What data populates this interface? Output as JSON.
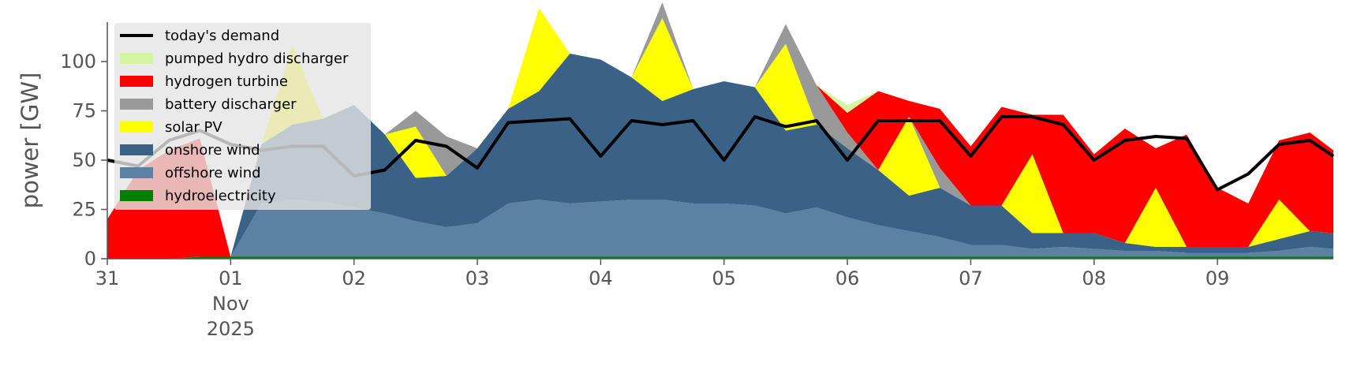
{
  "chart_data": {
    "type": "area",
    "ylabel": "power [GW]",
    "xlabel": "",
    "ylim": [
      0,
      120
    ],
    "xlim": [
      0,
      9.94
    ],
    "yticks": [
      0,
      25,
      50,
      75,
      100
    ],
    "xticks": [
      {
        "x": 0,
        "lines": [
          "31"
        ]
      },
      {
        "x": 1,
        "lines": [
          "01",
          "Nov",
          "2025"
        ]
      },
      {
        "x": 2,
        "lines": [
          "02"
        ]
      },
      {
        "x": 3,
        "lines": [
          "03"
        ]
      },
      {
        "x": 4,
        "lines": [
          "04"
        ]
      },
      {
        "x": 5,
        "lines": [
          "05"
        ]
      },
      {
        "x": 6,
        "lines": [
          "06"
        ]
      },
      {
        "x": 7,
        "lines": [
          "07"
        ]
      },
      {
        "x": 8,
        "lines": [
          "08"
        ]
      },
      {
        "x": 9,
        "lines": [
          "09"
        ]
      }
    ],
    "grid": false,
    "legend_position": "top-left",
    "x_unit": "days from 31 Oct 2025",
    "x": [
      0,
      0.25,
      0.5,
      0.75,
      1,
      1.25,
      1.5,
      1.75,
      2,
      2.25,
      2.5,
      2.75,
      3,
      3.25,
      3.5,
      3.75,
      4,
      4.25,
      4.5,
      4.75,
      5,
      5.25,
      5.5,
      5.75,
      6,
      6.25,
      6.5,
      6.75,
      7,
      7.25,
      7.5,
      7.75,
      8,
      8.25,
      8.5,
      8.75,
      9,
      9.25,
      9.5,
      9.75,
      9.94
    ],
    "series": [
      {
        "name": "hydroelectricity",
        "color": "#008000",
        "values": [
          0,
          0,
          0,
          1,
          1,
          1,
          1,
          1,
          1,
          1,
          1,
          1,
          1,
          1,
          1,
          1,
          1,
          1,
          1,
          1,
          1,
          1,
          1,
          1,
          1,
          1,
          1,
          1,
          1,
          1,
          1,
          1,
          1,
          1,
          1,
          1,
          1,
          1,
          1,
          1,
          1
        ]
      },
      {
        "name": "offshore wind",
        "color": "#5b81a3",
        "values": [
          0,
          0,
          0,
          0,
          0,
          27,
          29,
          28,
          25,
          22,
          18,
          15,
          17,
          27,
          29,
          27,
          28,
          29,
          29,
          27,
          27,
          26,
          22,
          25,
          20,
          16,
          13,
          10,
          6,
          6,
          4,
          5,
          4,
          3,
          3,
          2,
          2,
          2,
          3,
          5,
          4
        ]
      },
      {
        "name": "onshore wind",
        "color": "#3a6186",
        "values": [
          0,
          0,
          0,
          0,
          0,
          30,
          38,
          42,
          52,
          40,
          22,
          26,
          38,
          48,
          55,
          76,
          72,
          62,
          50,
          58,
          62,
          60,
          42,
          42,
          35,
          28,
          18,
          25,
          20,
          20,
          8,
          7,
          8,
          4,
          2,
          3,
          3,
          3,
          6,
          8,
          8
        ]
      },
      {
        "name": "solar PV",
        "color": "#ffff00",
        "values": [
          0,
          0,
          0,
          0,
          0,
          0,
          40,
          0,
          0,
          0,
          26,
          0,
          0,
          0,
          42,
          0,
          0,
          0,
          42,
          0,
          0,
          0,
          44,
          0,
          0,
          0,
          40,
          0,
          0,
          0,
          40,
          0,
          0,
          0,
          30,
          0,
          0,
          0,
          20,
          0,
          0
        ]
      },
      {
        "name": "battery discharger",
        "color": "#999999",
        "values": [
          0,
          0,
          0,
          0,
          0,
          0,
          0,
          0,
          0,
          0,
          8,
          20,
          0,
          0,
          0,
          0,
          0,
          0,
          8,
          0,
          0,
          0,
          10,
          20,
          8,
          0,
          0,
          10,
          0,
          0,
          0,
          0,
          0,
          0,
          0,
          0,
          0,
          0,
          0,
          0,
          0
        ]
      },
      {
        "name": "hydrogen turbine",
        "color": "#ff0000",
        "values": [
          20,
          45,
          55,
          60,
          0,
          0,
          0,
          0,
          0,
          0,
          0,
          0,
          0,
          0,
          0,
          0,
          0,
          0,
          0,
          0,
          0,
          0,
          0,
          0,
          10,
          40,
          8,
          30,
          30,
          50,
          20,
          60,
          40,
          58,
          20,
          57,
          30,
          22,
          30,
          50,
          42
        ]
      },
      {
        "name": "pumped hydro discharger",
        "color": "#d4f5a0",
        "values": [
          0,
          0,
          0,
          0,
          0,
          0,
          0,
          0,
          0,
          0,
          0,
          0,
          0,
          0,
          0,
          0,
          0,
          0,
          0,
          0,
          0,
          0,
          0,
          0,
          4,
          0,
          0,
          0,
          0,
          0,
          0,
          0,
          0,
          0,
          0,
          0,
          0,
          0,
          0,
          0,
          0
        ]
      },
      {
        "name": "today's demand",
        "color": "#000000",
        "kind": "line",
        "values": [
          50,
          47,
          60,
          65,
          58,
          55,
          57,
          57,
          42,
          45,
          60,
          57,
          46,
          69,
          70,
          71,
          52,
          70,
          68,
          70,
          50,
          72,
          67,
          70,
          50,
          70,
          70,
          70,
          52,
          72,
          72,
          68,
          50,
          60,
          62,
          61,
          35,
          43,
          58,
          60,
          52
        ]
      }
    ],
    "legend": [
      "today's demand",
      "pumped hydro discharger",
      "hydrogen turbine",
      "battery discharger",
      "solar PV",
      "onshore wind",
      "offshore wind",
      "hydroelectricity"
    ]
  }
}
